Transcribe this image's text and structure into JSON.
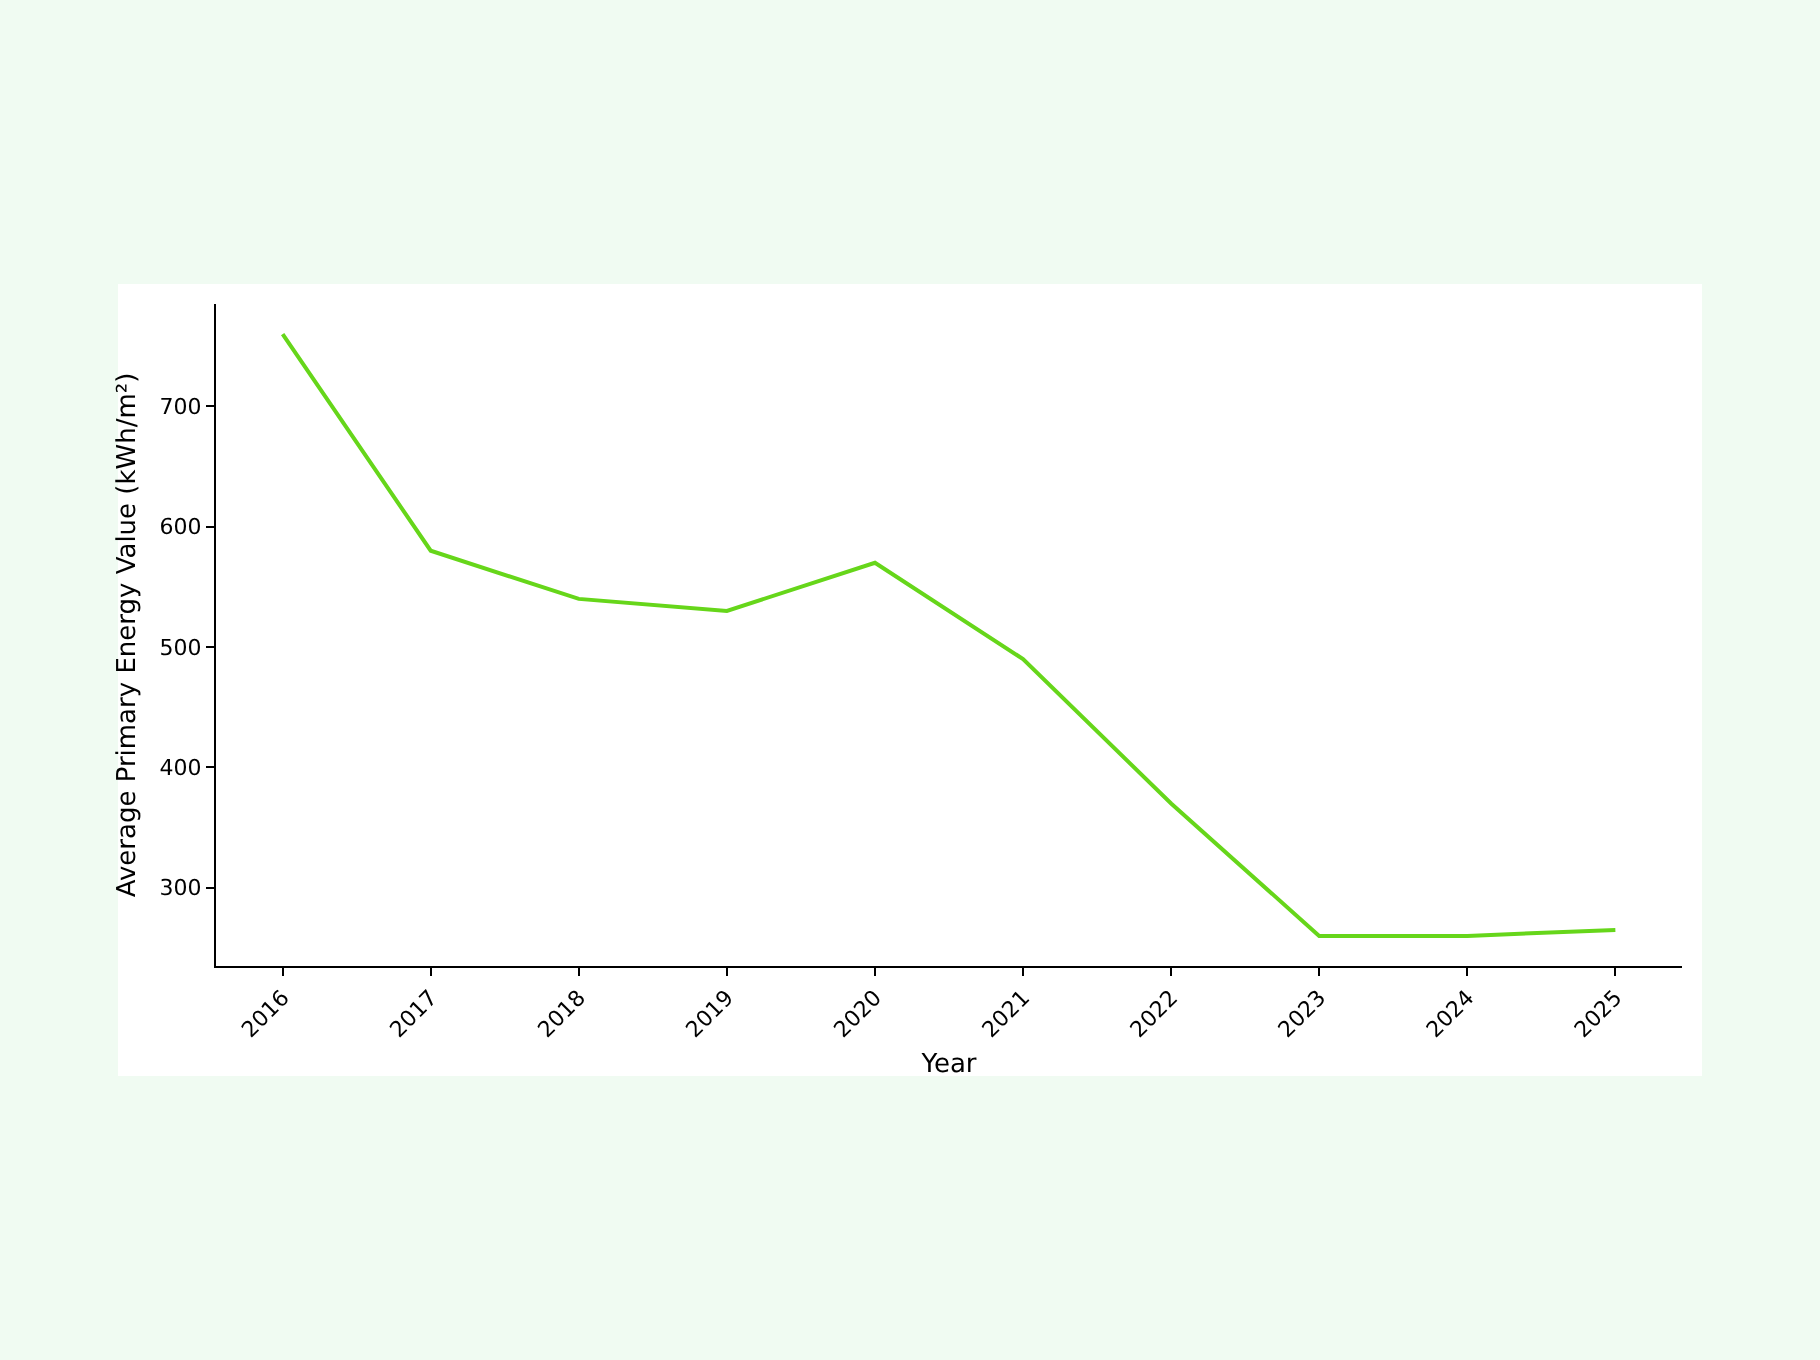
{
  "chart_data": {
    "type": "line",
    "xlabel": "Year",
    "ylabel": "Average Primary Energy Value (kWh/m²)",
    "x": [
      2016,
      2017,
      2018,
      2019,
      2020,
      2021,
      2022,
      2023,
      2024,
      2025
    ],
    "series": [
      {
        "color": "#66d61a",
        "values": [
          760,
          580,
          540,
          530,
          570,
          490,
          370,
          260,
          260,
          265
        ]
      }
    ],
    "xlim": [
      2015.55,
      2025.45
    ],
    "xticks": [
      2016,
      2017,
      2018,
      2019,
      2020,
      2021,
      2022,
      2023,
      2024,
      2025
    ],
    "ylim": [
      235,
      785
    ],
    "yticks": [
      300,
      400,
      500,
      600,
      700
    ],
    "legend": false,
    "marker": "none",
    "line_style": "solid"
  }
}
